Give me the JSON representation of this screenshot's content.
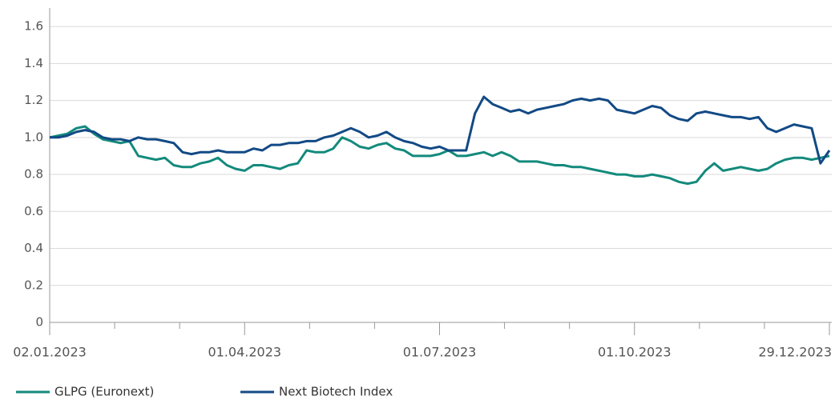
{
  "chart_data": {
    "type": "line",
    "categories": [
      "02.01.2023",
      null,
      null,
      null,
      null,
      null,
      null,
      null,
      null,
      null,
      null,
      null,
      null,
      null,
      null,
      null,
      null,
      null,
      null,
      null,
      null,
      null,
      "01.04.2023",
      null,
      null,
      null,
      null,
      null,
      null,
      null,
      null,
      null,
      null,
      null,
      null,
      null,
      null,
      null,
      null,
      null,
      null,
      null,
      null,
      null,
      "01.07.2023",
      null,
      null,
      null,
      null,
      null,
      null,
      null,
      null,
      null,
      null,
      null,
      null,
      null,
      null,
      null,
      null,
      null,
      null,
      null,
      null,
      null,
      "01.10.2023",
      null,
      null,
      null,
      null,
      null,
      null,
      null,
      null,
      null,
      null,
      null,
      null,
      null,
      null,
      null,
      null,
      null,
      null,
      null,
      null,
      null,
      "29.12.2023"
    ],
    "series": [
      {
        "name": "GLPG (Euronext)",
        "color": "#138a7c",
        "values": [
          1.0,
          1.01,
          1.02,
          1.05,
          1.06,
          1.02,
          0.99,
          0.98,
          0.97,
          0.98,
          0.9,
          0.89,
          0.88,
          0.89,
          0.85,
          0.84,
          0.84,
          0.86,
          0.87,
          0.89,
          0.85,
          0.83,
          0.82,
          0.85,
          0.85,
          0.84,
          0.83,
          0.85,
          0.86,
          0.93,
          0.92,
          0.92,
          0.94,
          1.0,
          0.98,
          0.95,
          0.94,
          0.96,
          0.97,
          0.94,
          0.93,
          0.9,
          0.9,
          0.9,
          0.91,
          0.93,
          0.9,
          0.9,
          0.91,
          0.92,
          0.9,
          0.92,
          0.9,
          0.87,
          0.87,
          0.87,
          0.86,
          0.85,
          0.85,
          0.84,
          0.84,
          0.83,
          0.82,
          0.81,
          0.8,
          0.8,
          0.79,
          0.79,
          0.8,
          0.79,
          0.78,
          0.76,
          0.75,
          0.76,
          0.82,
          0.86,
          0.82,
          0.83,
          0.84,
          0.83,
          0.82,
          0.83,
          0.86,
          0.88,
          0.89,
          0.89,
          0.88,
          0.89,
          0.9
        ]
      },
      {
        "name": "Next Biotech Index",
        "color": "#124a85",
        "values": [
          1.0,
          1.0,
          1.01,
          1.03,
          1.04,
          1.03,
          1.0,
          0.99,
          0.99,
          0.98,
          1.0,
          0.99,
          0.99,
          0.98,
          0.97,
          0.92,
          0.91,
          0.92,
          0.92,
          0.93,
          0.92,
          0.92,
          0.92,
          0.94,
          0.93,
          0.96,
          0.96,
          0.97,
          0.97,
          0.98,
          0.98,
          1.0,
          1.01,
          1.03,
          1.05,
          1.03,
          1.0,
          1.01,
          1.03,
          1.0,
          0.98,
          0.97,
          0.95,
          0.94,
          0.95,
          0.93,
          0.93,
          0.93,
          1.13,
          1.22,
          1.18,
          1.16,
          1.14,
          1.15,
          1.13,
          1.15,
          1.16,
          1.17,
          1.18,
          1.2,
          1.21,
          1.2,
          1.21,
          1.2,
          1.15,
          1.14,
          1.13,
          1.15,
          1.17,
          1.16,
          1.12,
          1.1,
          1.09,
          1.13,
          1.14,
          1.13,
          1.12,
          1.11,
          1.11,
          1.1,
          1.11,
          1.05,
          1.03,
          1.05,
          1.07,
          1.06,
          1.05,
          0.86,
          0.93
        ]
      }
    ],
    "ylim": [
      0,
      1.7
    ],
    "yticks": [
      0,
      0.2,
      0.4,
      0.6,
      0.8,
      {
        "value": 1,
        "label": "1.0"
      },
      1.2,
      1.4,
      1.6
    ],
    "grid": true
  }
}
